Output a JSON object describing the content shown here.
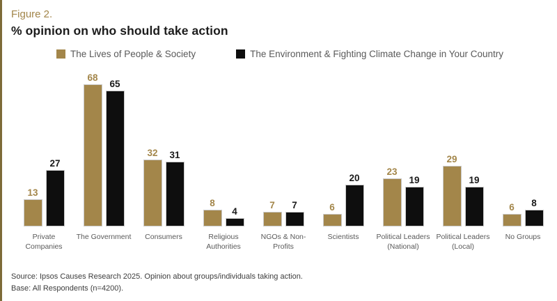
{
  "header": {
    "figure_label": "Figure 2.",
    "title": "% opinion on who should take action"
  },
  "colors": {
    "gold": "#a3864a",
    "black": "#0e0e0e",
    "gold_value_label": "#a3864a",
    "black_value_label": "#1a1a1a",
    "accent_border": "#7d6b38"
  },
  "legend": [
    {
      "label": "The Lives of People & Society",
      "color": "#a3864a"
    },
    {
      "label": "The Environment & Fighting Climate Change in Your Country",
      "color": "#0e0e0e"
    }
  ],
  "chart_data": {
    "type": "bar",
    "title": "% opinion on who should take action",
    "categories": [
      "Private Companies",
      "The Government",
      "Consumers",
      "Religious Authorities",
      "NGOs & Non-Profits",
      "Scientists",
      "Political Leaders (National)",
      "Political Leaders (Local)",
      "No Groups"
    ],
    "series": [
      {
        "name": "The Lives of People & Society",
        "color": "#a3864a",
        "value_label_color": "#a3864a",
        "values": [
          13,
          68,
          32,
          8,
          7,
          6,
          23,
          29,
          6
        ]
      },
      {
        "name": "The Environment & Fighting Climate Change in Your Country",
        "color": "#0e0e0e",
        "value_label_color": "#1a1a1a",
        "values": [
          27,
          65,
          31,
          4,
          7,
          20,
          19,
          19,
          8
        ]
      }
    ],
    "xlabel": "",
    "ylabel": "",
    "ylim": [
      0,
      70
    ],
    "grid": false,
    "legend_position": "top",
    "data_labels": true
  },
  "footer": {
    "source_line": "Source: Ipsos Causes Research 2025. Opinion about groups/individuals taking action.",
    "base_line": "Base: All Respondents (n=4200)."
  }
}
